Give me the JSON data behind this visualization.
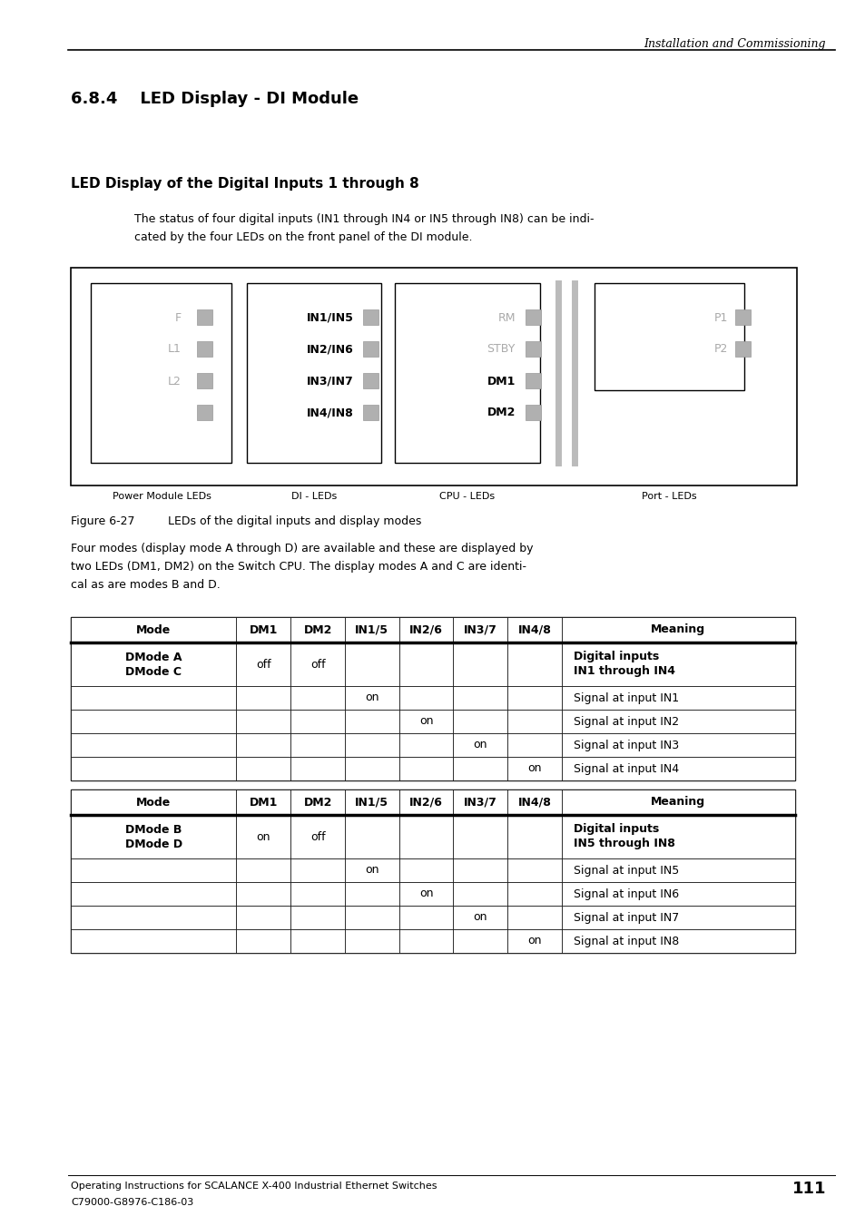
{
  "page_header_text": "Installation and Commissioning",
  "section_title": "6.8.4    LED Display - DI Module",
  "subsection_title": "LED Display of the Digital Inputs 1 through 8",
  "body_text1_line1": "The status of four digital inputs (IN1 through IN4 or IN5 through IN8) can be indi-",
  "body_text1_line2": "cated by the four LEDs on the front panel of the DI module.",
  "figure_caption_label": "Figure 6-27",
  "figure_caption_text": "LEDs of the digital inputs and display modes",
  "body_text2_line1": "Four modes (display mode A through D) are available and these are displayed by",
  "body_text2_line2": "two LEDs (DM1, DM2) on the Switch CPU. The display modes A and C are identi-",
  "body_text2_line3": "cal as are modes B and D.",
  "table1_headers": [
    "Mode",
    "DM1",
    "DM2",
    "IN1/5",
    "IN2/6",
    "IN3/7",
    "IN4/8",
    "Meaning"
  ],
  "table1_rows": [
    [
      "DMode A\nDMode C",
      "off",
      "off",
      "",
      "",
      "",
      "",
      "Digital inputs\nIN1 through IN4"
    ],
    [
      "",
      "",
      "",
      "on",
      "",
      "",
      "",
      "Signal at input IN1"
    ],
    [
      "",
      "",
      "",
      "",
      "on",
      "",
      "",
      "Signal at input IN2"
    ],
    [
      "",
      "",
      "",
      "",
      "",
      "on",
      "",
      "Signal at input IN3"
    ],
    [
      "",
      "",
      "",
      "",
      "",
      "",
      "on",
      "Signal at input IN4"
    ]
  ],
  "table2_headers": [
    "Mode",
    "DM1",
    "DM2",
    "IN1/5",
    "IN2/6",
    "IN3/7",
    "IN4/8",
    "Meaning"
  ],
  "table2_rows": [
    [
      "DMode B\nDMode D",
      "on",
      "off",
      "",
      "",
      "",
      "",
      "Digital inputs\nIN5 through IN8"
    ],
    [
      "",
      "",
      "",
      "on",
      "",
      "",
      "",
      "Signal at input IN5"
    ],
    [
      "",
      "",
      "",
      "",
      "on",
      "",
      "",
      "Signal at input IN6"
    ],
    [
      "",
      "",
      "",
      "",
      "",
      "on",
      "",
      "Signal at input IN7"
    ],
    [
      "",
      "",
      "",
      "",
      "",
      "",
      "on",
      "Signal at input IN8"
    ]
  ],
  "footer_text1": "Operating Instructions for SCALANCE X-400 Industrial Ethernet Switches",
  "footer_text2": "C79000-G8976-C186-03",
  "page_number": "111",
  "led_color": "#b0b0b0",
  "bg_color": "#ffffff",
  "col_widths_rel": [
    2.2,
    0.72,
    0.72,
    0.72,
    0.72,
    0.72,
    0.72,
    3.1
  ]
}
